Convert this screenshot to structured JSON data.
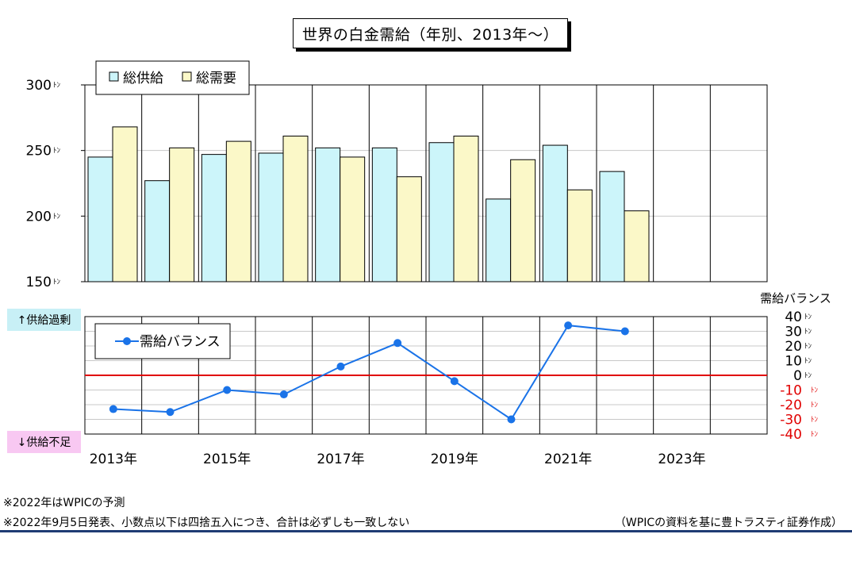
{
  "title": "世界の白金需給（年別、2013年～）",
  "side_labels": {
    "oversupply": "↑供給過剰",
    "undersupply": "↓供給不足"
  },
  "notes": [
    "※2022年はWPICの予測",
    "※2022年9月5日発表、小数点以下は四捨五入につき、合計は必ずしも一致しない"
  ],
  "source": "（WPICの資料を基に豊トラスティ証券作成）",
  "colors": {
    "supply_fill": "#ccf5fa",
    "demand_fill": "#fbf8c8",
    "balance_line": "#1a73e8",
    "zero_line": "#e00000",
    "negative_tick": "#e00000",
    "title_shadow": "#000000",
    "rule": "#1f3b73"
  },
  "chart_data": [
    {
      "type": "bar",
      "categories": [
        "2013",
        "2014",
        "2015",
        "2016",
        "2017",
        "2018",
        "2019",
        "2020",
        "2021",
        "2022",
        "2023",
        "2024"
      ],
      "x_tick_labels": [
        "2013年",
        "2015年",
        "2017年",
        "2019年",
        "2021年",
        "2023年"
      ],
      "series": [
        {
          "name": "総供給",
          "values": [
            245,
            227,
            247,
            248,
            252,
            252,
            256,
            213,
            254,
            234,
            null,
            null
          ]
        },
        {
          "name": "総需要",
          "values": [
            268,
            252,
            257,
            261,
            245,
            230,
            261,
            243,
            220,
            204,
            null,
            null
          ]
        }
      ],
      "ylim": [
        150,
        300
      ],
      "y_ticks": [
        150,
        200,
        250,
        300
      ],
      "y_tick_labels": [
        "150",
        "200",
        "250",
        "300"
      ],
      "y_unit": "ﾄﾝ",
      "legend": "top-left",
      "grid": true
    },
    {
      "type": "line",
      "x": [
        "2013",
        "2014",
        "2015",
        "2016",
        "2017",
        "2018",
        "2019",
        "2020",
        "2021",
        "2022"
      ],
      "series": [
        {
          "name": "需給バランス",
          "values": [
            -23,
            -25,
            -10,
            -13,
            6,
            22,
            -4,
            -30,
            34,
            30
          ]
        }
      ],
      "axis_title": "需給バランス",
      "ylim": [
        -40,
        40
      ],
      "y_ticks": [
        40,
        30,
        20,
        10,
        0,
        -10,
        -20,
        -30,
        -40
      ],
      "y_tick_labels": [
        "40",
        "30",
        "20",
        "10",
        "0",
        "-10",
        "-20",
        "-30",
        "-40"
      ],
      "y_unit": "ﾄﾝ",
      "zero_line": true,
      "legend": "top-left",
      "grid": true
    }
  ]
}
